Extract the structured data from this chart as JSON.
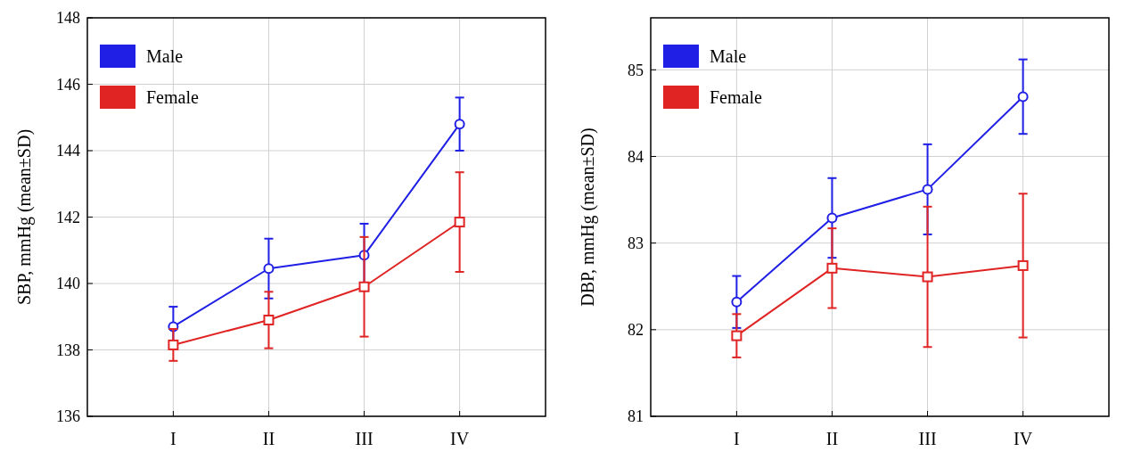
{
  "chart_data": [
    {
      "type": "line",
      "ylabel": "SBP, mmHg (mean±SD)",
      "categories": [
        "I",
        "II",
        "III",
        "IV"
      ],
      "ylim": [
        136,
        148
      ],
      "yticks": [
        136,
        138,
        140,
        142,
        144,
        146,
        148
      ],
      "grid": true,
      "legend": "top left",
      "line_style": "solid",
      "series": [
        {
          "name": "Male",
          "color": "#1f1fe6",
          "marker": "circle",
          "values": [
            138.7,
            140.45,
            140.85,
            144.8
          ],
          "errors": [
            0.6,
            0.9,
            0.95,
            0.8
          ]
        },
        {
          "name": "Female",
          "color": "#e02424",
          "marker": "square",
          "values": [
            138.15,
            138.9,
            139.9,
            141.85
          ],
          "errors": [
            0.48,
            0.85,
            1.5,
            1.5
          ]
        }
      ]
    },
    {
      "type": "line",
      "ylabel": "DBP, mmHg (mean±SD)",
      "categories": [
        "I",
        "II",
        "III",
        "IV"
      ],
      "ylim": [
        81,
        85.6
      ],
      "yticks": [
        81,
        82,
        83,
        84,
        85
      ],
      "grid": true,
      "legend": "top left",
      "line_style": "solid",
      "series": [
        {
          "name": "Male",
          "color": "#1f1fe6",
          "marker": "circle",
          "values": [
            82.32,
            83.29,
            83.62,
            84.69
          ],
          "errors": [
            0.3,
            0.46,
            0.52,
            0.43
          ]
        },
        {
          "name": "Female",
          "color": "#e02424",
          "marker": "square",
          "values": [
            81.93,
            82.71,
            82.61,
            82.74
          ],
          "errors": [
            0.25,
            0.46,
            0.81,
            0.83
          ]
        }
      ]
    }
  ]
}
